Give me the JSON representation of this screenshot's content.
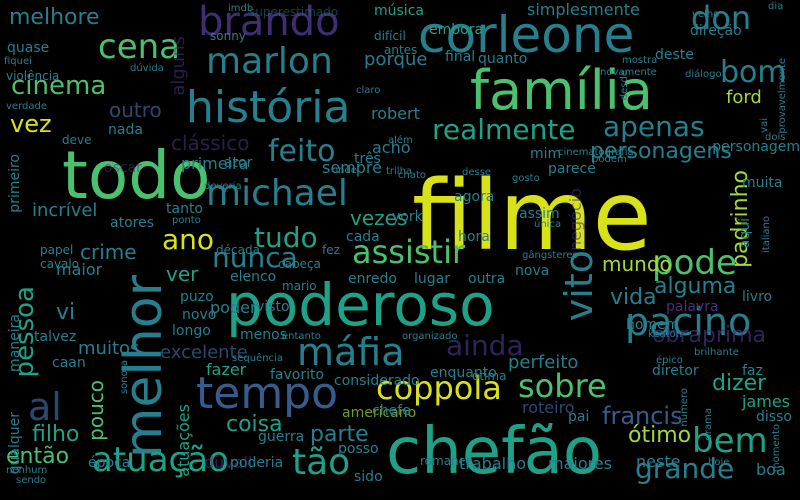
{
  "palette": {
    "background": "#000000",
    "yellow": "#d8e219",
    "lime": "#a0da39",
    "green": "#4ac16d",
    "teal_green": "#1fa187",
    "teal": "#277f8e",
    "blue": "#365c8d",
    "indigo": "#46337e",
    "purple": "#440154"
  },
  "words": [
    {
      "text": "filme",
      "color": "yellow"
    },
    {
      "text": "chefão",
      "color": "teal_green"
    },
    {
      "text": "todo",
      "color": "green"
    },
    {
      "text": "poderoso",
      "color": "teal_green"
    },
    {
      "text": "família",
      "color": "green"
    },
    {
      "text": "corleone",
      "color": "teal"
    },
    {
      "text": "melhor",
      "color": "teal"
    },
    {
      "text": "história",
      "color": "teal"
    },
    {
      "text": "tempo",
      "color": "blue"
    },
    {
      "text": "brando",
      "color": "indigo"
    },
    {
      "text": "marlon",
      "color": "teal"
    },
    {
      "text": "michael",
      "color": "teal"
    },
    {
      "text": "máfia",
      "color": "teal"
    },
    {
      "text": "pacino",
      "color": "teal"
    },
    {
      "text": "coppola",
      "color": "yellow"
    },
    {
      "text": "sobre",
      "color": "green"
    },
    {
      "text": "vito",
      "color": "teal"
    },
    {
      "text": "atuação",
      "color": "teal_green"
    },
    {
      "text": "assistir",
      "color": "green"
    },
    {
      "text": "cena",
      "color": "green"
    },
    {
      "text": "al",
      "color": "blue"
    },
    {
      "text": "ano",
      "color": "yellow"
    },
    {
      "text": "tudo",
      "color": "teal_green"
    },
    {
      "text": "nunca",
      "color": "teal"
    },
    {
      "text": "pode",
      "color": "green"
    },
    {
      "text": "bem",
      "color": "teal_green"
    },
    {
      "text": "grande",
      "color": "teal"
    },
    {
      "text": "tão",
      "color": "teal_green"
    },
    {
      "text": "realmente",
      "color": "teal_green"
    },
    {
      "text": "apenas",
      "color": "teal"
    },
    {
      "text": "feito",
      "color": "teal"
    },
    {
      "text": "ainda",
      "color": "indigo"
    },
    {
      "text": "bom",
      "color": "teal"
    },
    {
      "text": "don",
      "color": "teal"
    },
    {
      "text": "cinema",
      "color": "green"
    },
    {
      "text": "melhore",
      "color": "teal"
    },
    {
      "text": "pessoa",
      "color": "teal_green"
    },
    {
      "text": "vez",
      "color": "yellow"
    },
    {
      "text": "personagens",
      "color": "teal"
    },
    {
      "text": "ford",
      "color": "lime"
    },
    {
      "text": "francis",
      "color": "blue"
    },
    {
      "text": "parte",
      "color": "teal"
    },
    {
      "text": "ótimo",
      "color": "lime"
    },
    {
      "text": "dizer",
      "color": "teal_green"
    },
    {
      "text": "filho",
      "color": "teal_green"
    },
    {
      "text": "coisa",
      "color": "teal_green"
    },
    {
      "text": "então",
      "color": "green"
    },
    {
      "text": "vida",
      "color": "teal"
    },
    {
      "text": "mundo",
      "color": "lime"
    },
    {
      "text": "alguma",
      "color": "teal"
    },
    {
      "text": "padrinho",
      "color": "lime"
    },
    {
      "text": "obraprima",
      "color": "indigo"
    },
    {
      "text": "excelente",
      "color": "blue"
    },
    {
      "text": "perfeito",
      "color": "teal"
    },
    {
      "text": "clássico",
      "color": "indigo"
    },
    {
      "text": "incrível",
      "color": "teal"
    },
    {
      "text": "vezes",
      "color": "teal_green"
    },
    {
      "text": "outro",
      "color": "blue"
    },
    {
      "text": "primeira",
      "color": "teal"
    },
    {
      "text": "crime",
      "color": "teal"
    },
    {
      "text": "ver",
      "color": "teal_green"
    },
    {
      "text": "muitos",
      "color": "teal"
    },
    {
      "text": "pouco",
      "color": "green"
    },
    {
      "text": "vi",
      "color": "teal"
    },
    {
      "text": "porque",
      "color": "teal"
    },
    {
      "text": "robert",
      "color": "teal"
    },
    {
      "text": "acho",
      "color": "teal"
    },
    {
      "text": "sempre",
      "color": "teal"
    },
    {
      "text": "negócio",
      "color": "indigo"
    },
    {
      "text": "james",
      "color": "teal_green"
    },
    {
      "text": "roteiro",
      "color": "blue"
    },
    {
      "text": "trabalho",
      "color": "teal"
    },
    {
      "text": "maiores",
      "color": "teal"
    },
    {
      "text": "neste",
      "color": "teal"
    },
    {
      "text": "boa",
      "color": "teal"
    },
    {
      "text": "embora",
      "color": "teal_green"
    },
    {
      "text": "simplesmente",
      "color": "teal"
    },
    {
      "text": "música",
      "color": "teal_green"
    },
    {
      "text": "quanto",
      "color": "teal"
    },
    {
      "text": "final",
      "color": "teal"
    },
    {
      "text": "direção",
      "color": "teal"
    },
    {
      "text": "deste",
      "color": "teal"
    },
    {
      "text": "alguns",
      "color": "indigo"
    },
    {
      "text": "quase",
      "color": "teal"
    },
    {
      "text": "nada",
      "color": "teal"
    },
    {
      "text": "oscar",
      "color": "indigo"
    },
    {
      "text": "ator",
      "color": "teal"
    },
    {
      "text": "tanto",
      "color": "teal"
    },
    {
      "text": "atores",
      "color": "teal"
    },
    {
      "text": "maior",
      "color": "teal"
    },
    {
      "text": "elenco",
      "color": "teal"
    },
    {
      "text": "cada",
      "color": "teal"
    },
    {
      "text": "enredo",
      "color": "teal"
    },
    {
      "text": "lugar",
      "color": "teal"
    },
    {
      "text": "outra",
      "color": "teal"
    },
    {
      "text": "nova",
      "color": "teal"
    },
    {
      "text": "hora",
      "color": "teal"
    },
    {
      "text": "agora",
      "color": "teal"
    },
    {
      "text": "assim",
      "color": "teal"
    },
    {
      "text": "aqui",
      "color": "teal"
    },
    {
      "text": "muita",
      "color": "teal"
    },
    {
      "text": "fazer",
      "color": "teal_green"
    },
    {
      "text": "atuações",
      "color": "teal_green"
    },
    {
      "text": "guerra",
      "color": "teal"
    },
    {
      "text": "posso",
      "color": "teal"
    },
    {
      "text": "duvall",
      "color": "indigo"
    },
    {
      "text": "poderia",
      "color": "teal"
    },
    {
      "text": "época",
      "color": "teal"
    },
    {
      "text": "menos",
      "color": "teal"
    },
    {
      "text": "longo",
      "color": "teal"
    },
    {
      "text": "novo",
      "color": "teal"
    },
    {
      "text": "puzo",
      "color": "teal"
    },
    {
      "text": "favorito",
      "color": "teal"
    },
    {
      "text": "americano",
      "color": "lime"
    },
    {
      "text": "caan",
      "color": "teal"
    },
    {
      "text": "talvez",
      "color": "teal"
    },
    {
      "text": "maneira",
      "color": "teal"
    },
    {
      "text": "qualquer",
      "color": "teal"
    },
    {
      "text": "primeiro",
      "color": "teal"
    },
    {
      "text": "papel",
      "color": "teal"
    },
    {
      "text": "cavalo",
      "color": "teal"
    },
    {
      "text": "diretor",
      "color": "teal"
    },
    {
      "text": "faz",
      "color": "teal"
    },
    {
      "text": "disso",
      "color": "teal"
    },
    {
      "text": "livro",
      "color": "teal"
    },
    {
      "text": "homem",
      "color": "teal"
    },
    {
      "text": "palavra",
      "color": "indigo"
    },
    {
      "text": "personagem",
      "color": "teal"
    },
    {
      "text": "parece",
      "color": "teal"
    },
    {
      "text": "mim",
      "color": "teal"
    },
    {
      "text": "três",
      "color": "teal"
    },
    {
      "text": "sonny",
      "color": "teal"
    },
    {
      "text": "york",
      "color": "teal"
    },
    {
      "text": "década",
      "color": "teal"
    },
    {
      "text": "fez",
      "color": "teal"
    },
    {
      "text": "cabeça",
      "color": "teal"
    },
    {
      "text": "mario",
      "color": "teal"
    },
    {
      "text": "poder",
      "color": "teal"
    },
    {
      "text": "visto",
      "color": "teal"
    },
    {
      "text": "considerado",
      "color": "teal"
    },
    {
      "text": "enquanto",
      "color": "teal"
    },
    {
      "text": "ótima",
      "color": "teal"
    },
    {
      "text": "pai",
      "color": "teal"
    },
    {
      "text": "chefe",
      "color": "teal"
    },
    {
      "text": "sido",
      "color": "teal"
    },
    {
      "text": "romance",
      "color": "teal"
    },
    {
      "text": "hoje",
      "color": "teal"
    },
    {
      "text": "nenhum",
      "color": "teal"
    },
    {
      "text": "antes",
      "color": "teal"
    },
    {
      "text": "difícil",
      "color": "teal"
    },
    {
      "text": "superestimado",
      "color": "teal"
    },
    {
      "text": "imdb",
      "color": "teal"
    },
    {
      "text": "sendo",
      "color": "teal"
    },
    {
      "text": "fiquei",
      "color": "teal"
    },
    {
      "text": "violência",
      "color": "teal"
    },
    {
      "text": "dúvida",
      "color": "teal"
    },
    {
      "text": "verdade",
      "color": "teal"
    },
    {
      "text": "deve",
      "color": "teal"
    },
    {
      "text": "claro",
      "color": "teal"
    },
    {
      "text": "chato",
      "color": "teal"
    },
    {
      "text": "novamente",
      "color": "teal"
    },
    {
      "text": "mostra",
      "color": "teal"
    },
    {
      "text": "diálogo",
      "color": "teal"
    },
    {
      "text": "velho",
      "color": "teal"
    },
    {
      "text": "dia",
      "color": "teal"
    },
    {
      "text": "desde",
      "color": "teal"
    },
    {
      "text": "vai",
      "color": "teal"
    },
    {
      "text": "provavelmente",
      "color": "teal"
    },
    {
      "text": "dois",
      "color": "teal"
    },
    {
      "text": "podem",
      "color": "teal"
    },
    {
      "text": "cinematografia",
      "color": "teal"
    },
    {
      "text": "além",
      "color": "teal"
    },
    {
      "text": "onde",
      "color": "teal"
    },
    {
      "text": "trilha",
      "color": "teal"
    },
    {
      "text": "desse",
      "color": "teal"
    },
    {
      "text": "gosto",
      "color": "teal"
    },
    {
      "text": "deveria",
      "color": "teal"
    },
    {
      "text": "ponto",
      "color": "teal"
    },
    {
      "text": "única",
      "color": "teal"
    },
    {
      "text": "épico",
      "color": "teal"
    },
    {
      "text": "brilhante",
      "color": "teal"
    },
    {
      "text": "italiano",
      "color": "teal"
    },
    {
      "text": "gângsteres",
      "color": "teal"
    },
    {
      "text": "keaton",
      "color": "teal"
    },
    {
      "text": "organizado",
      "color": "teal"
    },
    {
      "text": "entanto",
      "color": "teal"
    },
    {
      "text": "sequência",
      "color": "teal"
    },
    {
      "text": "sonora",
      "color": "teal"
    },
    {
      "text": "número",
      "color": "teal"
    },
    {
      "text": "drama",
      "color": "teal"
    },
    {
      "text": "momento",
      "color": "teal"
    },
    {
      "text": "opinião",
      "color": "teal"
    }
  ]
}
